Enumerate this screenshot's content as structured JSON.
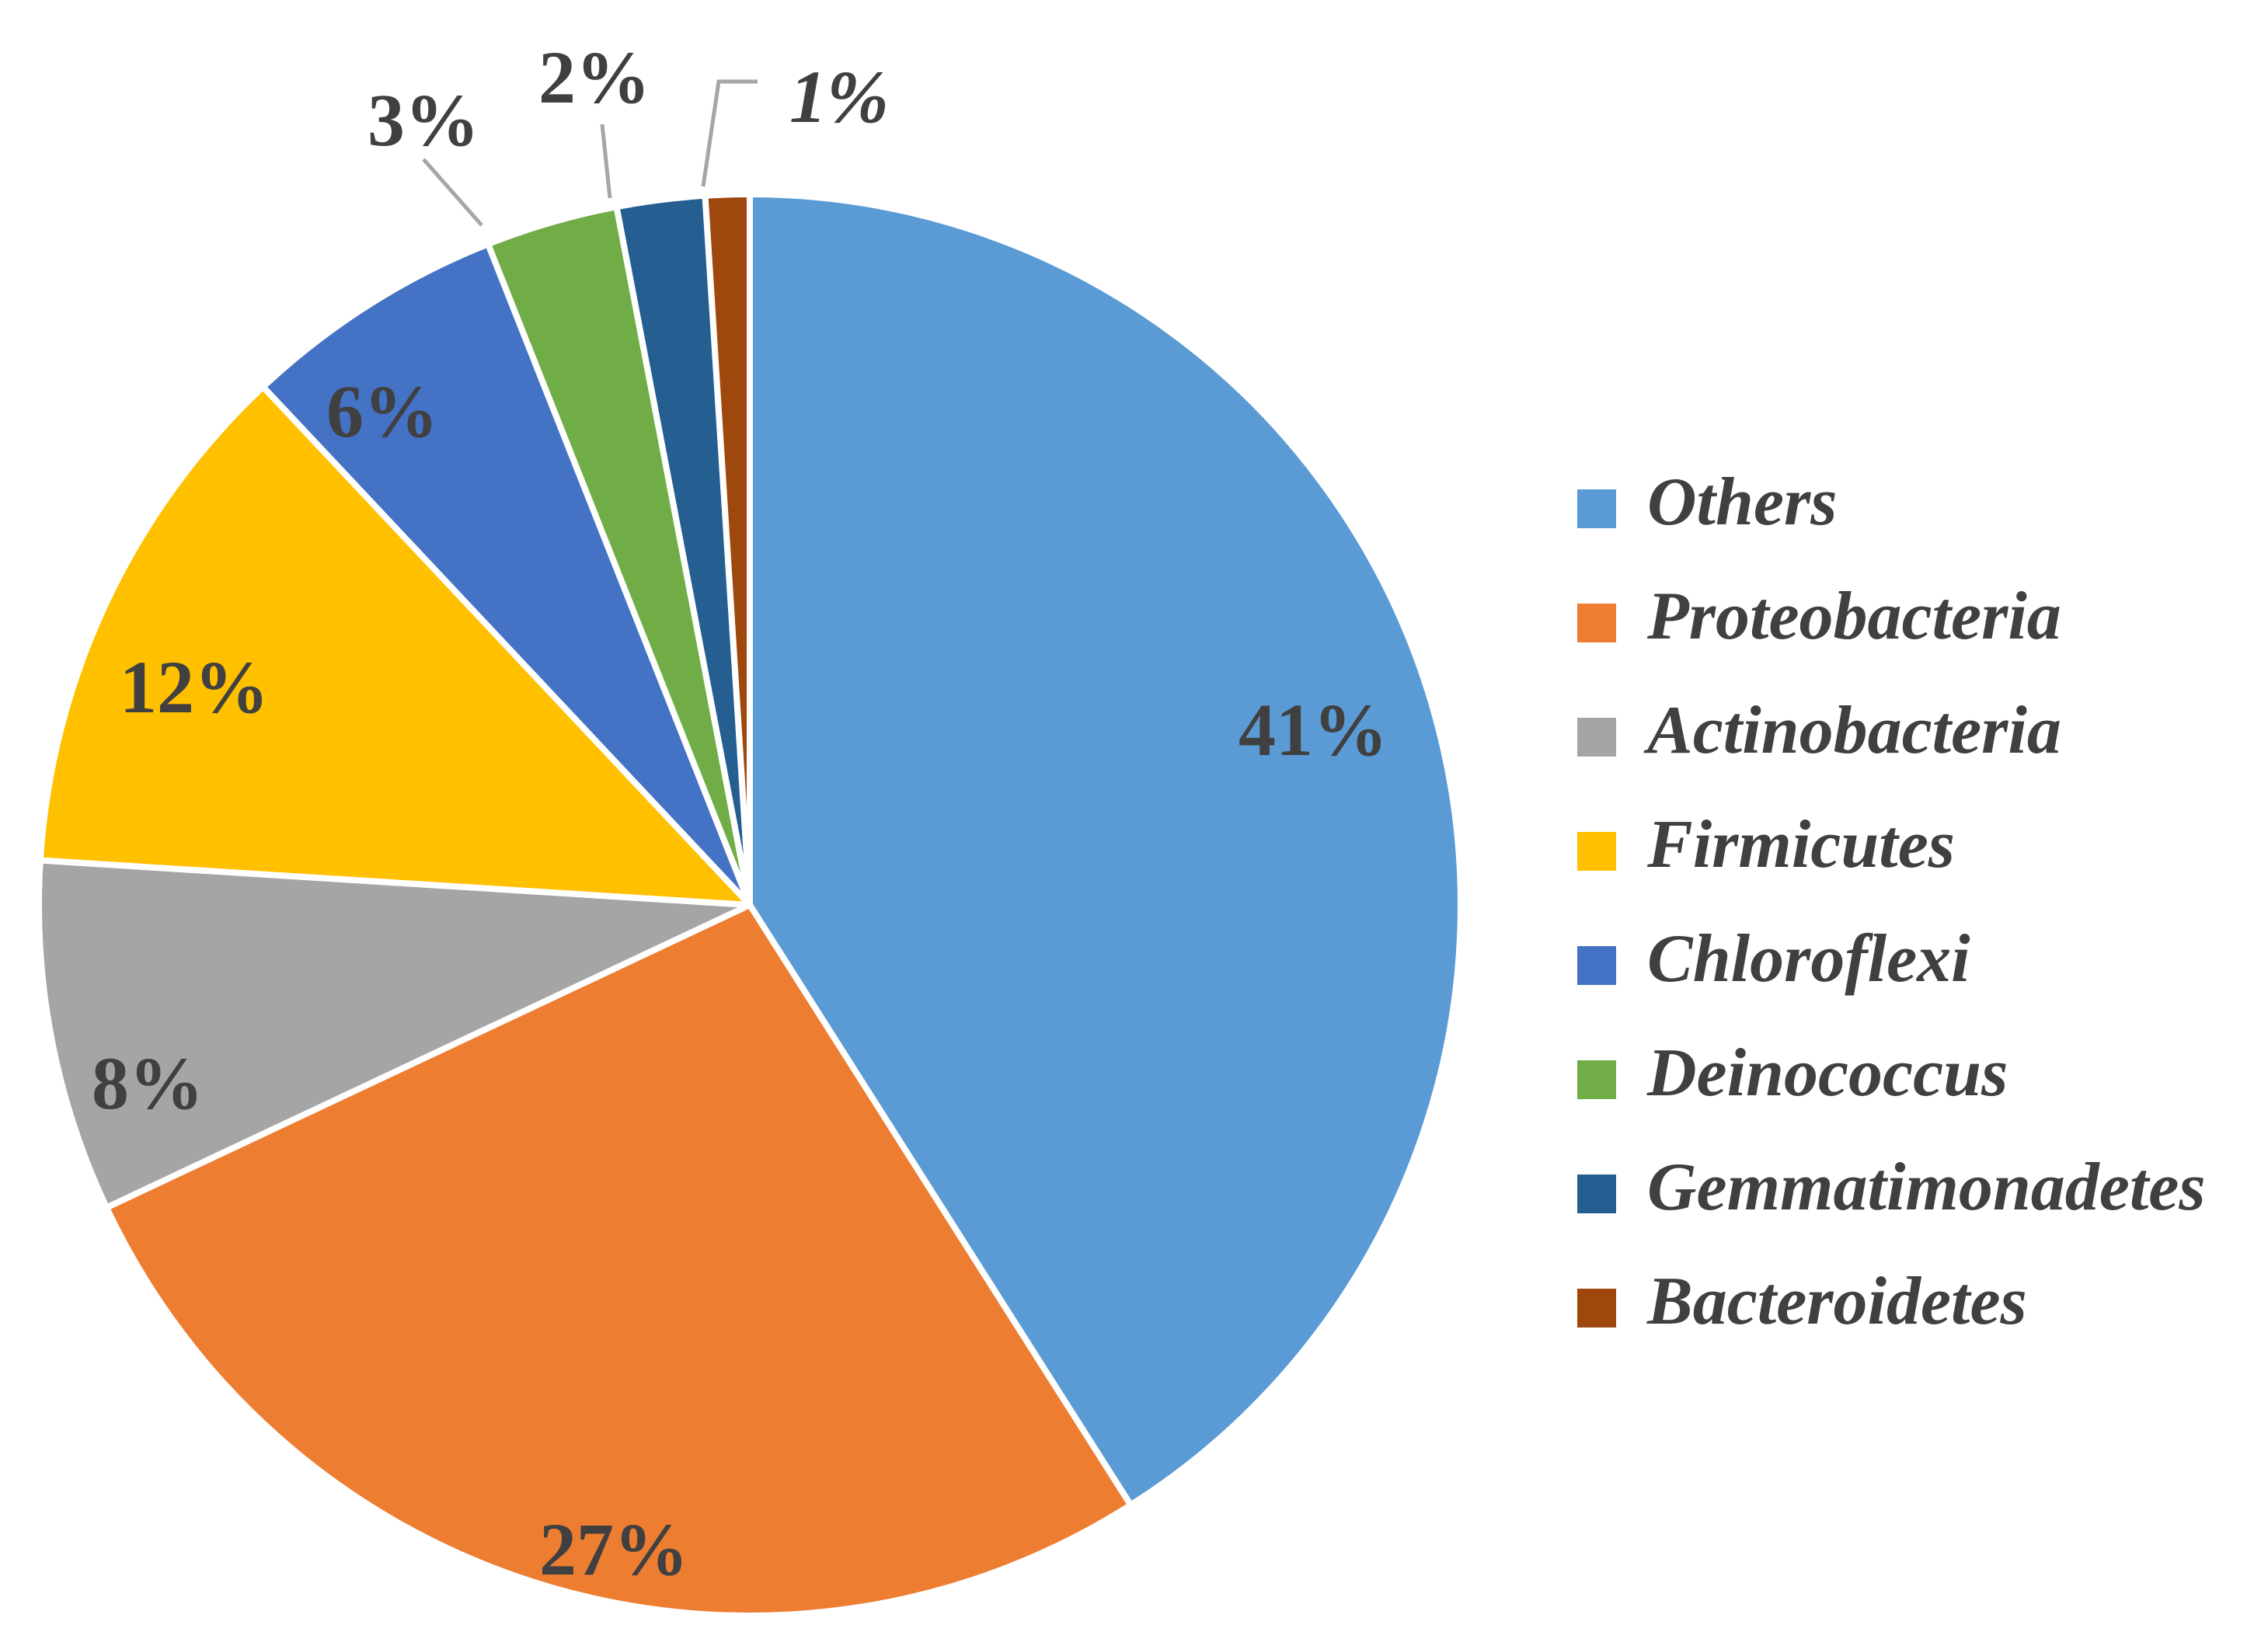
{
  "chart_data": {
    "type": "pie",
    "title": "",
    "start_angle_deg": 0,
    "direction": "clockwise",
    "legend_position": "right",
    "series": [
      {
        "name": "Others",
        "value": 41,
        "label": "41%",
        "color": "#5b9bd5"
      },
      {
        "name": "Proteobacteria",
        "value": 27,
        "label": "27%",
        "color": "#ed7d31"
      },
      {
        "name": "Actinobacteria",
        "value": 8,
        "label": "8%",
        "color": "#a5a5a5"
      },
      {
        "name": "Firmicutes",
        "value": 12,
        "label": "12%",
        "color": "#ffc000"
      },
      {
        "name": "Chloroflexi",
        "value": 6,
        "label": "6%",
        "color": "#4472c4"
      },
      {
        "name": "Deinococcus",
        "value": 3,
        "label": "3%",
        "color": "#70ad47"
      },
      {
        "name": "Gemmatimonadetes",
        "value": 2,
        "label": "2%",
        "color": "#255e91"
      },
      {
        "name": "Bacteroidetes",
        "value": 1,
        "label": "1%",
        "color": "#9e480e"
      }
    ]
  }
}
